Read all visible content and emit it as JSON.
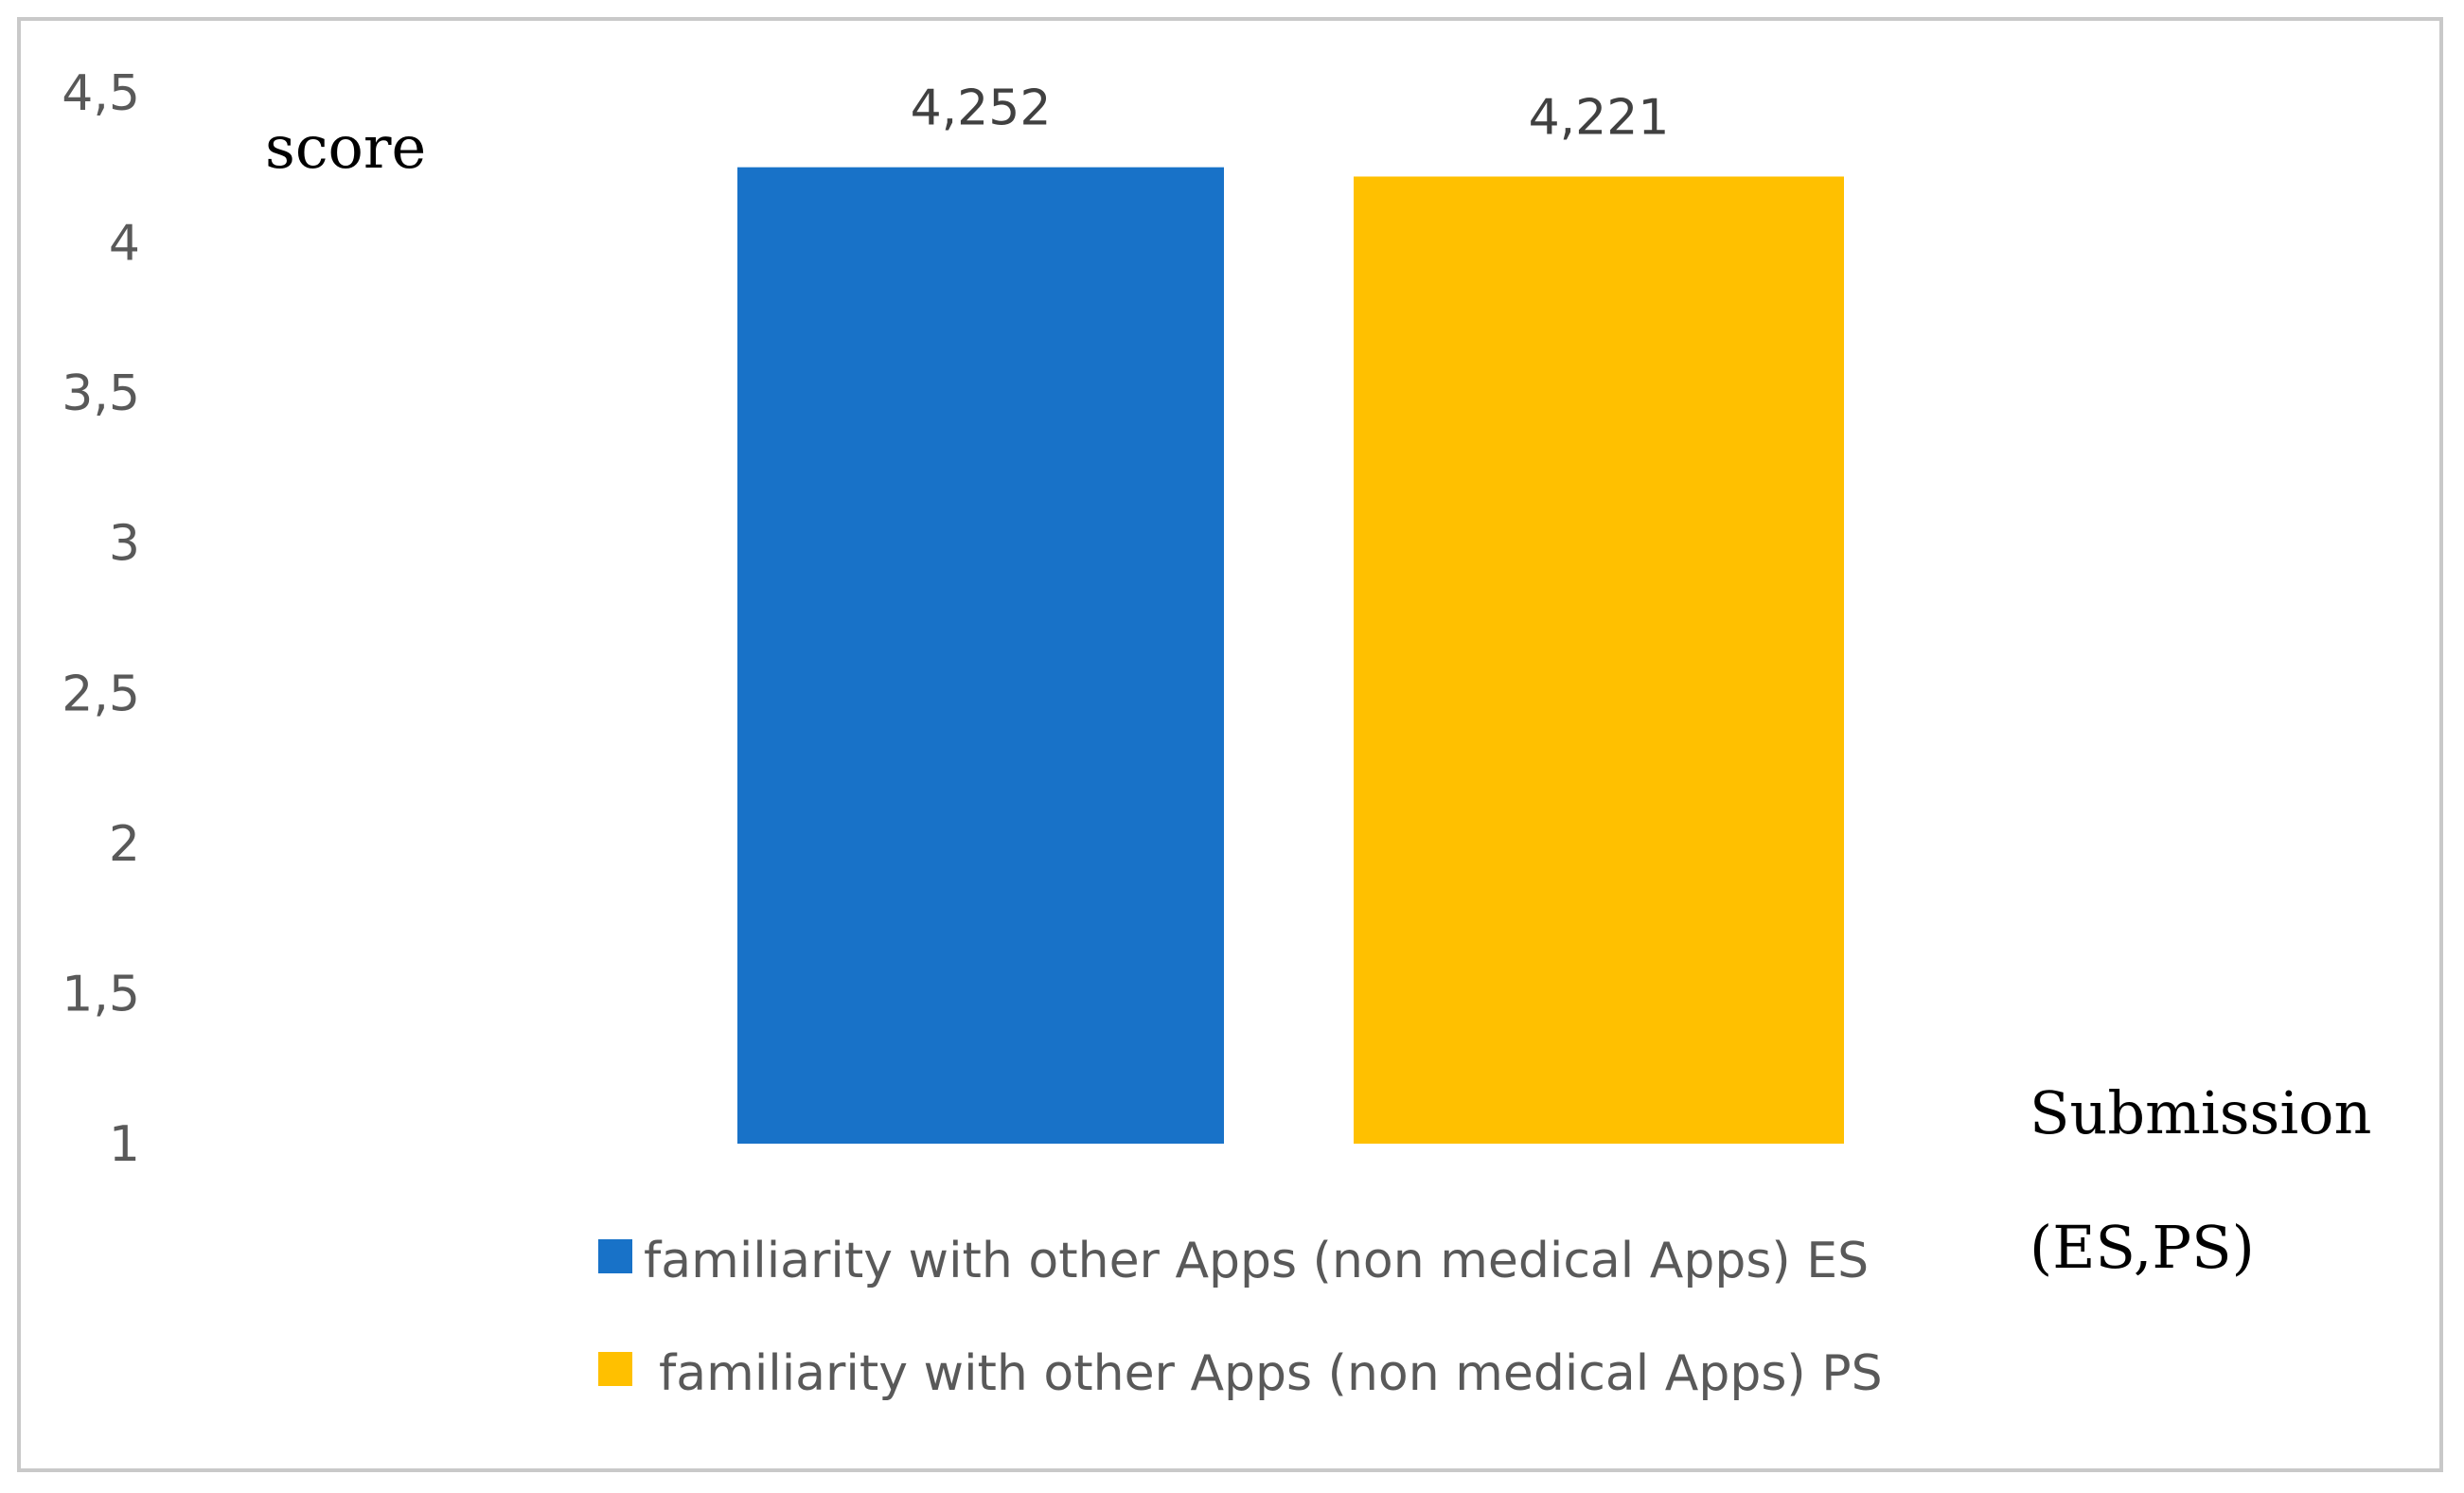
{
  "chart_data": {
    "type": "bar",
    "categories": [
      ""
    ],
    "series": [
      {
        "name": "familiarity with  other Apps (non medical Apps) ES",
        "values": [
          4.252
        ],
        "label": "4,252",
        "color": "#1872C8"
      },
      {
        "name": "familiarity with  other Apps (non medical Apps) PS",
        "values": [
          4.221
        ],
        "label": "4,221",
        "color": "#FFC000"
      }
    ],
    "ylabel": "score",
    "xlabel_lines": [
      "Submission",
      "(ES,PS)"
    ],
    "ylim": [
      1,
      4.5
    ],
    "yticks": [
      {
        "value": 1,
        "label": "1"
      },
      {
        "value": 1.5,
        "label": "1,5"
      },
      {
        "value": 2,
        "label": "2"
      },
      {
        "value": 2.5,
        "label": "2,5"
      },
      {
        "value": 3,
        "label": "3"
      },
      {
        "value": 3.5,
        "label": "3,5"
      },
      {
        "value": 4,
        "label": "4"
      },
      {
        "value": 4.5,
        "label": "4,5"
      }
    ],
    "grid": false,
    "legend_position": "bottom"
  }
}
